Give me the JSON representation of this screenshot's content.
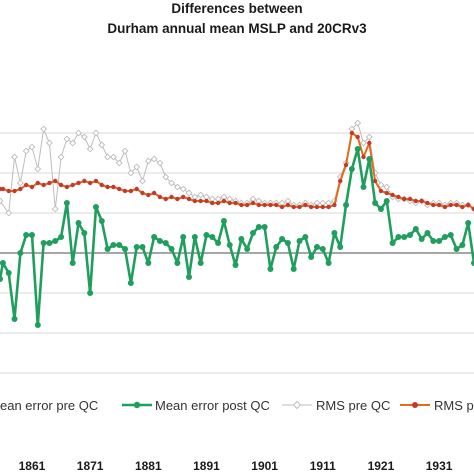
{
  "chart_data": {
    "type": "line",
    "title": [
      "Differences between",
      "Durham annual mean MSLP and 20CRv3"
    ],
    "xlabel": "",
    "ylabel": "",
    "x_ticks": [
      "1861",
      "1871",
      "1881",
      "1891",
      "1901",
      "1911",
      "1921",
      "1931"
    ],
    "xlim": [
      1855.5,
      1937
    ],
    "grid": "horizontal",
    "legend_position": "bottom",
    "series": [
      {
        "name": "ean error pre QC",
        "color": "#6b6b6b",
        "marker": "none",
        "points": [
          [
            1855.5,
            1.2
          ]
        ]
      },
      {
        "name": "Mean error post QC",
        "color": "#1f9e5e",
        "marker": "circle",
        "points": [
          [
            1855.5,
            -0.13
          ],
          [
            1856,
            -0.05
          ],
          [
            1857,
            -0.1
          ],
          [
            1858,
            -0.33
          ],
          [
            1859,
            0.0
          ],
          [
            1860,
            0.09
          ],
          [
            1861,
            0.09
          ],
          [
            1862,
            -0.36
          ],
          [
            1863,
            0.05
          ],
          [
            1864,
            0.05
          ],
          [
            1865,
            0.06
          ],
          [
            1866,
            0.08
          ],
          [
            1867,
            0.25
          ],
          [
            1868,
            -0.05
          ],
          [
            1869,
            0.15
          ],
          [
            1870,
            0.1
          ],
          [
            1871,
            -0.2
          ],
          [
            1872,
            0.23
          ],
          [
            1873,
            0.16
          ],
          [
            1874,
            0.02
          ],
          [
            1875,
            0.04
          ],
          [
            1876,
            0.04
          ],
          [
            1877,
            0.02
          ],
          [
            1878,
            -0.15
          ],
          [
            1879,
            0.03
          ],
          [
            1880,
            0.03
          ],
          [
            1881,
            -0.05
          ],
          [
            1882,
            0.08
          ],
          [
            1883,
            0.06
          ],
          [
            1884,
            0.05
          ],
          [
            1885,
            0.02
          ],
          [
            1886,
            -0.05
          ],
          [
            1887,
            0.08
          ],
          [
            1888,
            -0.12
          ],
          [
            1889,
            0.08
          ],
          [
            1890,
            -0.05
          ],
          [
            1891,
            0.09
          ],
          [
            1892,
            0.08
          ],
          [
            1893,
            0.05
          ],
          [
            1894,
            0.16
          ],
          [
            1895,
            0.04
          ],
          [
            1896,
            -0.06
          ],
          [
            1897,
            0.07
          ],
          [
            1898,
            0.02
          ],
          [
            1899,
            0.1
          ],
          [
            1900,
            0.13
          ],
          [
            1901,
            0.13
          ],
          [
            1902,
            -0.08
          ],
          [
            1903,
            0.03
          ],
          [
            1904,
            0.07
          ],
          [
            1905,
            0.05
          ],
          [
            1906,
            -0.08
          ],
          [
            1907,
            0.06
          ],
          [
            1908,
            0.08
          ],
          [
            1909,
            -0.02
          ],
          [
            1910,
            0.03
          ],
          [
            1911,
            0.02
          ],
          [
            1912,
            -0.05
          ],
          [
            1913,
            0.1
          ],
          [
            1914,
            0.03
          ],
          [
            1915,
            0.24
          ],
          [
            1916,
            0.42
          ],
          [
            1917,
            0.52
          ],
          [
            1918,
            0.33
          ],
          [
            1919,
            0.47
          ],
          [
            1920,
            0.25
          ],
          [
            1921,
            0.22
          ],
          [
            1922,
            0.26
          ],
          [
            1923,
            0.05
          ],
          [
            1924,
            0.08
          ],
          [
            1925,
            0.08
          ],
          [
            1926,
            0.09
          ],
          [
            1927,
            0.12
          ],
          [
            1928,
            0.07
          ],
          [
            1929,
            0.1
          ],
          [
            1930,
            0.06
          ],
          [
            1931,
            0.06
          ],
          [
            1932,
            0.08
          ],
          [
            1933,
            0.09
          ],
          [
            1934,
            0.02
          ],
          [
            1935,
            0.04
          ],
          [
            1936,
            0.15
          ],
          [
            1937,
            -0.05
          ]
        ]
      },
      {
        "name": "RMS pre QC",
        "color": "#bdbdbd",
        "marker": "diamond-open",
        "points": [
          [
            1855.5,
            0.26
          ],
          [
            1857,
            0.2
          ],
          [
            1858,
            0.48
          ],
          [
            1859,
            0.35
          ],
          [
            1860,
            0.51
          ],
          [
            1861,
            0.53
          ],
          [
            1862,
            0.42
          ],
          [
            1863,
            0.62
          ],
          [
            1864,
            0.55
          ],
          [
            1865,
            0.22
          ],
          [
            1866,
            0.48
          ],
          [
            1867,
            0.57
          ],
          [
            1868,
            0.55
          ],
          [
            1869,
            0.6
          ],
          [
            1870,
            0.58
          ],
          [
            1871,
            0.52
          ],
          [
            1872,
            0.6
          ],
          [
            1873,
            0.54
          ],
          [
            1874,
            0.48
          ],
          [
            1875,
            0.48
          ],
          [
            1876,
            0.45
          ],
          [
            1877,
            0.51
          ],
          [
            1878,
            0.4
          ],
          [
            1879,
            0.43
          ],
          [
            1880,
            0.36
          ],
          [
            1881,
            0.46
          ],
          [
            1882,
            0.47
          ],
          [
            1883,
            0.45
          ],
          [
            1884,
            0.38
          ],
          [
            1885,
            0.35
          ],
          [
            1886,
            0.33
          ],
          [
            1887,
            0.32
          ],
          [
            1888,
            0.3
          ],
          [
            1889,
            0.28
          ],
          [
            1890,
            0.29
          ],
          [
            1891,
            0.28
          ],
          [
            1892,
            0.27
          ],
          [
            1893,
            0.27
          ],
          [
            1894,
            0.28
          ],
          [
            1895,
            0.27
          ],
          [
            1896,
            0.26
          ],
          [
            1897,
            0.25
          ],
          [
            1898,
            0.25
          ],
          [
            1899,
            0.27
          ],
          [
            1900,
            0.26
          ],
          [
            1901,
            0.25
          ],
          [
            1902,
            0.25
          ],
          [
            1903,
            0.25
          ],
          [
            1904,
            0.25
          ],
          [
            1905,
            0.26
          ],
          [
            1906,
            0.24
          ],
          [
            1907,
            0.24
          ],
          [
            1908,
            0.25
          ],
          [
            1909,
            0.24
          ],
          [
            1910,
            0.25
          ],
          [
            1911,
            0.25
          ],
          [
            1912,
            0.25
          ],
          [
            1913,
            0.26
          ],
          [
            1914,
            0.38
          ],
          [
            1915,
            0.45
          ],
          [
            1916,
            0.62
          ],
          [
            1917,
            0.65
          ],
          [
            1918,
            0.55
          ],
          [
            1919,
            0.58
          ],
          [
            1920,
            0.4
          ],
          [
            1921,
            0.34
          ],
          [
            1922,
            0.33
          ],
          [
            1923,
            0.28
          ],
          [
            1924,
            0.27
          ],
          [
            1925,
            0.27
          ],
          [
            1926,
            0.26
          ],
          [
            1927,
            0.25
          ],
          [
            1928,
            0.26
          ],
          [
            1929,
            0.24
          ],
          [
            1930,
            0.25
          ],
          [
            1931,
            0.25
          ],
          [
            1932,
            0.24
          ],
          [
            1933,
            0.25
          ],
          [
            1934,
            0.25
          ],
          [
            1935,
            0.24
          ],
          [
            1936,
            0.24
          ],
          [
            1937,
            0.22
          ]
        ]
      },
      {
        "name": "RMS pos",
        "color": "#e36c1c",
        "marker": "circle",
        "points": [
          [
            1855.5,
            0.32
          ],
          [
            1856,
            0.32
          ],
          [
            1857,
            0.31
          ],
          [
            1858,
            0.31
          ],
          [
            1859,
            0.32
          ],
          [
            1860,
            0.34
          ],
          [
            1861,
            0.33
          ],
          [
            1862,
            0.35
          ],
          [
            1863,
            0.34
          ],
          [
            1864,
            0.35
          ],
          [
            1865,
            0.36
          ],
          [
            1866,
            0.34
          ],
          [
            1867,
            0.33
          ],
          [
            1868,
            0.34
          ],
          [
            1869,
            0.35
          ],
          [
            1870,
            0.36
          ],
          [
            1871,
            0.35
          ],
          [
            1872,
            0.36
          ],
          [
            1873,
            0.34
          ],
          [
            1874,
            0.33
          ],
          [
            1875,
            0.33
          ],
          [
            1876,
            0.32
          ],
          [
            1877,
            0.31
          ],
          [
            1878,
            0.31
          ],
          [
            1879,
            0.32
          ],
          [
            1880,
            0.3
          ],
          [
            1881,
            0.29
          ],
          [
            1882,
            0.3
          ],
          [
            1883,
            0.28
          ],
          [
            1884,
            0.27
          ],
          [
            1885,
            0.28
          ],
          [
            1886,
            0.27
          ],
          [
            1887,
            0.28
          ],
          [
            1888,
            0.27
          ],
          [
            1889,
            0.26
          ],
          [
            1890,
            0.26
          ],
          [
            1891,
            0.26
          ],
          [
            1892,
            0.25
          ],
          [
            1893,
            0.25
          ],
          [
            1894,
            0.26
          ],
          [
            1895,
            0.25
          ],
          [
            1896,
            0.25
          ],
          [
            1897,
            0.24
          ],
          [
            1898,
            0.24
          ],
          [
            1899,
            0.25
          ],
          [
            1900,
            0.24
          ],
          [
            1901,
            0.24
          ],
          [
            1902,
            0.24
          ],
          [
            1903,
            0.24
          ],
          [
            1904,
            0.23
          ],
          [
            1905,
            0.24
          ],
          [
            1906,
            0.23
          ],
          [
            1907,
            0.23
          ],
          [
            1908,
            0.24
          ],
          [
            1909,
            0.23
          ],
          [
            1910,
            0.23
          ],
          [
            1911,
            0.23
          ],
          [
            1912,
            0.23
          ],
          [
            1913,
            0.24
          ],
          [
            1914,
            0.36
          ],
          [
            1915,
            0.44
          ],
          [
            1916,
            0.6
          ],
          [
            1917,
            0.58
          ],
          [
            1918,
            0.48
          ],
          [
            1919,
            0.55
          ],
          [
            1920,
            0.36
          ],
          [
            1921,
            0.31
          ],
          [
            1922,
            0.3
          ],
          [
            1923,
            0.29
          ],
          [
            1924,
            0.28
          ],
          [
            1925,
            0.27
          ],
          [
            1926,
            0.27
          ],
          [
            1927,
            0.26
          ],
          [
            1928,
            0.26
          ],
          [
            1929,
            0.25
          ],
          [
            1930,
            0.24
          ],
          [
            1931,
            0.24
          ],
          [
            1932,
            0.23
          ],
          [
            1933,
            0.24
          ],
          [
            1934,
            0.24
          ],
          [
            1935,
            0.23
          ],
          [
            1936,
            0.24
          ],
          [
            1937,
            0.22
          ]
        ]
      }
    ]
  }
}
